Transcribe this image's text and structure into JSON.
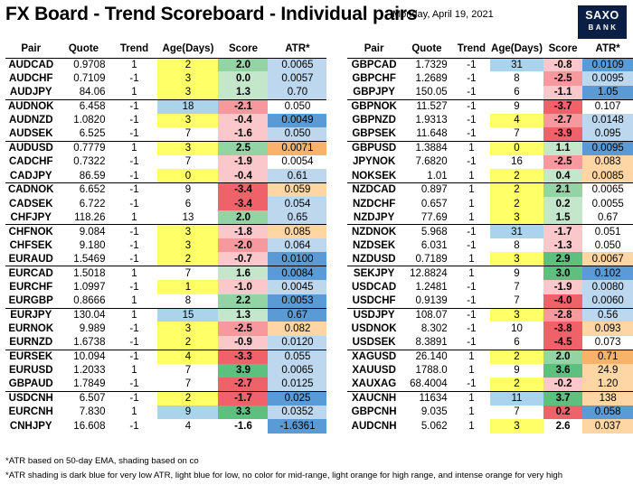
{
  "header": {
    "title": "FX Board - Trend Scoreboard - Individual pairs",
    "date": "Monday, April 19, 2021",
    "logo_line1": "SAXO",
    "logo_line2": "BANK"
  },
  "columns": [
    "Pair",
    "Quote",
    "Trend",
    "Age(Days)",
    "Score",
    "ATR*"
  ],
  "colors": {
    "age_yellow": "#ffff66",
    "age_blue": "#a9d4ec",
    "score_green_strong": "#5ec07e",
    "score_green_mid": "#93d3a4",
    "score_green_light": "#c4e7cc",
    "score_red_strong": "#f0626a",
    "score_red_mid": "#f5999e",
    "score_red_light": "#fac8ca",
    "atr_dark_blue": "#5b9bd5",
    "atr_light_blue": "#bdd7ee",
    "atr_light_orange": "#fdd6a3",
    "atr_intense_orange": "#f9b26a"
  },
  "left_table": [
    {
      "pair": "AUDCAD",
      "quote": "0.9708",
      "trend": "1",
      "age": "2",
      "age_bg": "#ffff66",
      "score": "2.0",
      "score_bg": "#93d3a4",
      "atr": "0.0065",
      "atr_bg": "#bdd7ee",
      "group_start": false
    },
    {
      "pair": "AUDCHF",
      "quote": "0.7109",
      "trend": "-1",
      "age": "3",
      "age_bg": "#ffff66",
      "score": "0.0",
      "score_bg": "#c4e7cc",
      "atr": "0.0057",
      "atr_bg": "#bdd7ee",
      "group_start": false
    },
    {
      "pair": "AUDJPY",
      "quote": "84.06",
      "trend": "1",
      "age": "3",
      "age_bg": "#ffff66",
      "score": "1.3",
      "score_bg": "#c4e7cc",
      "atr": "0.70",
      "atr_bg": "#bdd7ee",
      "group_start": false
    },
    {
      "pair": "AUDNOK",
      "quote": "6.458",
      "trend": "-1",
      "age": "18",
      "age_bg": "#a9d4ec",
      "score": "-2.1",
      "score_bg": "#f5999e",
      "atr": "0.050",
      "atr_bg": "",
      "group_start": true
    },
    {
      "pair": "AUDNZD",
      "quote": "1.0820",
      "trend": "-1",
      "age": "3",
      "age_bg": "#ffff66",
      "score": "-0.4",
      "score_bg": "#fac8ca",
      "atr": "0.0049",
      "atr_bg": "#5b9bd5",
      "group_start": false
    },
    {
      "pair": "AUDSEK",
      "quote": "6.525",
      "trend": "-1",
      "age": "7",
      "age_bg": "",
      "score": "-1.6",
      "score_bg": "#fac8ca",
      "atr": "0.050",
      "atr_bg": "#bdd7ee",
      "group_start": false
    },
    {
      "pair": "AUDUSD",
      "quote": "0.7779",
      "trend": "1",
      "age": "3",
      "age_bg": "#ffff66",
      "score": "2.5",
      "score_bg": "#93d3a4",
      "atr": "0.0071",
      "atr_bg": "#f9b26a",
      "group_start": true
    },
    {
      "pair": "CADCHF",
      "quote": "0.7322",
      "trend": "-1",
      "age": "7",
      "age_bg": "",
      "score": "-1.9",
      "score_bg": "#fac8ca",
      "atr": "0.0054",
      "atr_bg": "",
      "group_start": false
    },
    {
      "pair": "CADJPY",
      "quote": "86.59",
      "trend": "-1",
      "age": "0",
      "age_bg": "#ffff66",
      "score": "-0.4",
      "score_bg": "#fac8ca",
      "atr": "0.61",
      "atr_bg": "#bdd7ee",
      "group_start": false
    },
    {
      "pair": "CADNOK",
      "quote": "6.652",
      "trend": "-1",
      "age": "9",
      "age_bg": "",
      "score": "-3.4",
      "score_bg": "#f0626a",
      "atr": "0.059",
      "atr_bg": "#fdd6a3",
      "group_start": true
    },
    {
      "pair": "CADSEK",
      "quote": "6.722",
      "trend": "-1",
      "age": "6",
      "age_bg": "",
      "score": "-3.4",
      "score_bg": "#f0626a",
      "atr": "0.054",
      "atr_bg": "#bdd7ee",
      "group_start": false
    },
    {
      "pair": "CHFJPY",
      "quote": "118.26",
      "trend": "1",
      "age": "13",
      "age_bg": "",
      "score": "2.0",
      "score_bg": "#93d3a4",
      "atr": "0.65",
      "atr_bg": "#bdd7ee",
      "group_start": false
    },
    {
      "pair": "CHFNOK",
      "quote": "9.084",
      "trend": "-1",
      "age": "3",
      "age_bg": "#ffff66",
      "score": "-1.8",
      "score_bg": "#fac8ca",
      "atr": "0.085",
      "atr_bg": "#fdd6a3",
      "group_start": true
    },
    {
      "pair": "CHFSEK",
      "quote": "9.180",
      "trend": "-1",
      "age": "3",
      "age_bg": "#ffff66",
      "score": "-2.0",
      "score_bg": "#f5999e",
      "atr": "0.064",
      "atr_bg": "#bdd7ee",
      "group_start": false
    },
    {
      "pair": "EURAUD",
      "quote": "1.5469",
      "trend": "-1",
      "age": "2",
      "age_bg": "#ffff66",
      "score": "-0.7",
      "score_bg": "#fac8ca",
      "atr": "0.0100",
      "atr_bg": "#5b9bd5",
      "group_start": false
    },
    {
      "pair": "EURCAD",
      "quote": "1.5018",
      "trend": "1",
      "age": "7",
      "age_bg": "",
      "score": "1.6",
      "score_bg": "#c4e7cc",
      "atr": "0.0084",
      "atr_bg": "#5b9bd5",
      "group_start": true
    },
    {
      "pair": "EURCHF",
      "quote": "1.0997",
      "trend": "-1",
      "age": "1",
      "age_bg": "#ffff66",
      "score": "-1.0",
      "score_bg": "#fac8ca",
      "atr": "0.0045",
      "atr_bg": "#bdd7ee",
      "group_start": false
    },
    {
      "pair": "EURGBP",
      "quote": "0.8666",
      "trend": "1",
      "age": "8",
      "age_bg": "",
      "score": "2.2",
      "score_bg": "#93d3a4",
      "atr": "0.0053",
      "atr_bg": "#5b9bd5",
      "group_start": false
    },
    {
      "pair": "EURJPY",
      "quote": "130.04",
      "trend": "1",
      "age": "15",
      "age_bg": "#a9d4ec",
      "score": "1.3",
      "score_bg": "#c4e7cc",
      "atr": "0.67",
      "atr_bg": "#5b9bd5",
      "group_start": true
    },
    {
      "pair": "EURNOK",
      "quote": "9.989",
      "trend": "-1",
      "age": "3",
      "age_bg": "#ffff66",
      "score": "-2.5",
      "score_bg": "#f5999e",
      "atr": "0.082",
      "atr_bg": "#fdd6a3",
      "group_start": false
    },
    {
      "pair": "EURNZD",
      "quote": "1.6738",
      "trend": "-1",
      "age": "2",
      "age_bg": "#ffff66",
      "score": "-0.9",
      "score_bg": "#fac8ca",
      "atr": "0.0120",
      "atr_bg": "#bdd7ee",
      "group_start": false
    },
    {
      "pair": "EURSEK",
      "quote": "10.094",
      "trend": "-1",
      "age": "4",
      "age_bg": "#ffff66",
      "score": "-3.3",
      "score_bg": "#f0626a",
      "atr": "0.055",
      "atr_bg": "#bdd7ee",
      "group_start": true
    },
    {
      "pair": "EURUSD",
      "quote": "1.2033",
      "trend": "1",
      "age": "7",
      "age_bg": "",
      "score": "3.9",
      "score_bg": "#5ec07e",
      "atr": "0.0065",
      "atr_bg": "#bdd7ee",
      "group_start": false
    },
    {
      "pair": "GBPAUD",
      "quote": "1.7849",
      "trend": "-1",
      "age": "7",
      "age_bg": "",
      "score": "-2.7",
      "score_bg": "#f0626a",
      "atr": "0.0125",
      "atr_bg": "#bdd7ee",
      "group_start": false
    },
    {
      "pair": "USDCNH",
      "quote": "6.507",
      "trend": "-1",
      "age": "2",
      "age_bg": "#ffff66",
      "score": "-1.7",
      "score_bg": "#f0626a",
      "atr": "0.025",
      "atr_bg": "#5b9bd5",
      "group_start": true
    },
    {
      "pair": "EURCNH",
      "quote": "7.830",
      "trend": "1",
      "age": "9",
      "age_bg": "#a9d4ec",
      "score": "3.3",
      "score_bg": "#5ec07e",
      "atr": "0.0352",
      "atr_bg": "#bdd7ee",
      "group_start": false
    },
    {
      "pair": "CNHJPY",
      "quote": "16.608",
      "trend": "-1",
      "age": "4",
      "age_bg": "",
      "score": "-1.6",
      "score_bg": "",
      "atr": "-1.6361",
      "atr_bg": "#5b9bd5",
      "group_start": false
    }
  ],
  "right_table": [
    {
      "pair": "GBPCAD",
      "quote": "1.7329",
      "trend": "-1",
      "age": "31",
      "age_bg": "#a9d4ec",
      "score": "-0.8",
      "score_bg": "#fac8ca",
      "atr": "0.0109",
      "atr_bg": "#5b9bd5",
      "group_start": false
    },
    {
      "pair": "GBPCHF",
      "quote": "1.2689",
      "trend": "-1",
      "age": "8",
      "age_bg": "",
      "score": "-2.5",
      "score_bg": "#f5999e",
      "atr": "0.0095",
      "atr_bg": "#bdd7ee",
      "group_start": false
    },
    {
      "pair": "GBPJPY",
      "quote": "150.05",
      "trend": "-1",
      "age": "6",
      "age_bg": "",
      "score": "-1.1",
      "score_bg": "#fac8ca",
      "atr": "1.05",
      "atr_bg": "#5b9bd5",
      "group_start": false
    },
    {
      "pair": "GBPNOK",
      "quote": "11.527",
      "trend": "-1",
      "age": "9",
      "age_bg": "",
      "score": "-3.7",
      "score_bg": "#f0626a",
      "atr": "0.107",
      "atr_bg": "",
      "group_start": true
    },
    {
      "pair": "GBPNZD",
      "quote": "1.9313",
      "trend": "-1",
      "age": "4",
      "age_bg": "#ffff66",
      "score": "-2.7",
      "score_bg": "#f5999e",
      "atr": "0.0148",
      "atr_bg": "#bdd7ee",
      "group_start": false
    },
    {
      "pair": "GBPSEK",
      "quote": "11.648",
      "trend": "-1",
      "age": "7",
      "age_bg": "",
      "score": "-3.9",
      "score_bg": "#f0626a",
      "atr": "0.095",
      "atr_bg": "#bdd7ee",
      "group_start": false
    },
    {
      "pair": "GBPUSD",
      "quote": "1.3884",
      "trend": "1",
      "age": "0",
      "age_bg": "#ffff66",
      "score": "1.1",
      "score_bg": "#c4e7cc",
      "atr": "0.0095",
      "atr_bg": "#5b9bd5",
      "group_start": true
    },
    {
      "pair": "JPYNOK",
      "quote": "7.6820",
      "trend": "-1",
      "age": "16",
      "age_bg": "",
      "score": "-2.5",
      "score_bg": "#f5999e",
      "atr": "0.083",
      "atr_bg": "#fdd6a3",
      "group_start": false
    },
    {
      "pair": "NOKSEK",
      "quote": "1.01",
      "trend": "1",
      "age": "2",
      "age_bg": "#ffff66",
      "score": "0.4",
      "score_bg": "#c4e7cc",
      "atr": "0.0085",
      "atr_bg": "#fdd6a3",
      "group_start": false
    },
    {
      "pair": "NZDCAD",
      "quote": "0.897",
      "trend": "1",
      "age": "2",
      "age_bg": "#ffff66",
      "score": "2.1",
      "score_bg": "#93d3a4",
      "atr": "0.0065",
      "atr_bg": "",
      "group_start": true
    },
    {
      "pair": "NZDCHF",
      "quote": "0.657",
      "trend": "1",
      "age": "2",
      "age_bg": "#ffff66",
      "score": "0.2",
      "score_bg": "#c4e7cc",
      "atr": "0.0055",
      "atr_bg": "",
      "group_start": false
    },
    {
      "pair": "NZDJPY",
      "quote": "77.69",
      "trend": "1",
      "age": "3",
      "age_bg": "#ffff66",
      "score": "1.5",
      "score_bg": "#c4e7cc",
      "atr": "0.67",
      "atr_bg": "",
      "group_start": false
    },
    {
      "pair": "NZDNOK",
      "quote": "5.968",
      "trend": "-1",
      "age": "31",
      "age_bg": "#a9d4ec",
      "score": "-1.7",
      "score_bg": "#fac8ca",
      "atr": "0.051",
      "atr_bg": "",
      "group_start": true
    },
    {
      "pair": "NZDSEK",
      "quote": "6.031",
      "trend": "-1",
      "age": "8",
      "age_bg": "",
      "score": "-1.3",
      "score_bg": "#fac8ca",
      "atr": "0.050",
      "atr_bg": "",
      "group_start": false
    },
    {
      "pair": "NZDUSD",
      "quote": "0.7189",
      "trend": "1",
      "age": "3",
      "age_bg": "#ffff66",
      "score": "2.9",
      "score_bg": "#5ec07e",
      "atr": "0.0067",
      "atr_bg": "#fdd6a3",
      "group_start": false
    },
    {
      "pair": "SEKJPY",
      "quote": "12.8824",
      "trend": "1",
      "age": "9",
      "age_bg": "",
      "score": "3.0",
      "score_bg": "#5ec07e",
      "atr": "0.102",
      "atr_bg": "#5b9bd5",
      "group_start": true
    },
    {
      "pair": "USDCAD",
      "quote": "1.2481",
      "trend": "-1",
      "age": "7",
      "age_bg": "",
      "score": "-1.9",
      "score_bg": "#fac8ca",
      "atr": "0.0080",
      "atr_bg": "#bdd7ee",
      "group_start": false
    },
    {
      "pair": "USDCHF",
      "quote": "0.9139",
      "trend": "-1",
      "age": "7",
      "age_bg": "",
      "score": "-4.0",
      "score_bg": "#f0626a",
      "atr": "0.0060",
      "atr_bg": "#bdd7ee",
      "group_start": false
    },
    {
      "pair": "USDJPY",
      "quote": "108.07",
      "trend": "-1",
      "age": "3",
      "age_bg": "#ffff66",
      "score": "-2.8",
      "score_bg": "#f5999e",
      "atr": "0.56",
      "atr_bg": "#bdd7ee",
      "group_start": true
    },
    {
      "pair": "USDNOK",
      "quote": "8.302",
      "trend": "-1",
      "age": "10",
      "age_bg": "",
      "score": "-3.8",
      "score_bg": "#f0626a",
      "atr": "0.093",
      "atr_bg": "#fdd6a3",
      "group_start": false
    },
    {
      "pair": "USDSEK",
      "quote": "8.3891",
      "trend": "-1",
      "age": "6",
      "age_bg": "",
      "score": "-4.5",
      "score_bg": "#f0626a",
      "atr": "0.073",
      "atr_bg": "",
      "group_start": false
    },
    {
      "pair": "XAGUSD",
      "quote": "26.140",
      "trend": "1",
      "age": "2",
      "age_bg": "#ffff66",
      "score": "2.0",
      "score_bg": "#93d3a4",
      "atr": "0.71",
      "atr_bg": "#f9b26a",
      "group_start": true
    },
    {
      "pair": "XAUUSD",
      "quote": "1788.0",
      "trend": "1",
      "age": "9",
      "age_bg": "",
      "score": "3.6",
      "score_bg": "#5ec07e",
      "atr": "24.9",
      "atr_bg": "#fdd6a3",
      "group_start": false
    },
    {
      "pair": "XAUXAG",
      "quote": "68.4004",
      "trend": "-1",
      "age": "2",
      "age_bg": "#ffff66",
      "score": "-0.2",
      "score_bg": "#fac8ca",
      "atr": "1.20",
      "atr_bg": "#fdd6a3",
      "group_start": false
    },
    {
      "pair": "XAUCNH",
      "quote": "11634",
      "trend": "1",
      "age": "11",
      "age_bg": "#a9d4ec",
      "score": "3.7",
      "score_bg": "#5ec07e",
      "atr": "138",
      "atr_bg": "#fdd6a3",
      "group_start": true
    },
    {
      "pair": "GBPCNH",
      "quote": "9.035",
      "trend": "1",
      "age": "7",
      "age_bg": "",
      "score": "0.2",
      "score_bg": "#f0626a",
      "atr": "0.058",
      "atr_bg": "#5b9bd5",
      "group_start": false
    },
    {
      "pair": "AUDCNH",
      "quote": "5.062",
      "trend": "1",
      "age": "3",
      "age_bg": "#ffff66",
      "score": "2.6",
      "score_bg": "",
      "atr": "0.037",
      "atr_bg": "#fdd6a3",
      "group_start": false
    }
  ],
  "footnotes": {
    "line1": "*ATR based on 50-day EMA, shading based on co",
    "line2": "*ATR shading is dark blue for very low ATR, light blue for low, no color for mid-range, light orange for high range, and intense orange for very high"
  }
}
